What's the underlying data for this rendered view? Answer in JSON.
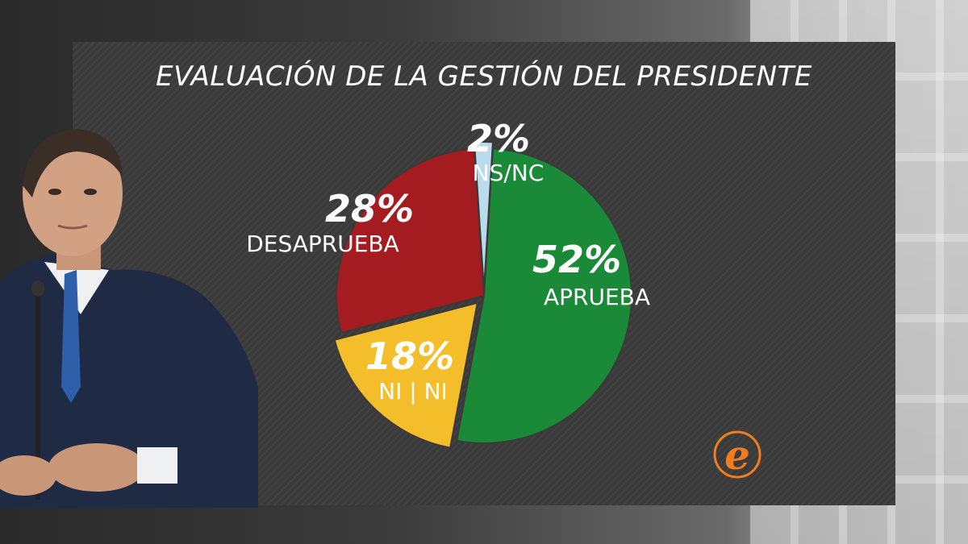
{
  "title": "EVALUACIÓN DE LA GESTIÓN DEL PRESIDENTE",
  "logo": {
    "text": "e",
    "color": "#f07d1e"
  },
  "chart_data": {
    "type": "pie",
    "title": "EVALUACIÓN DE LA GESTIÓN DEL PRESIDENTE",
    "slices": [
      {
        "label": "APRUEBA",
        "value": 52,
        "value_label": "52%",
        "color": "#1a8a38"
      },
      {
        "label": "NI | NI",
        "value": 18,
        "value_label": "18%",
        "color": "#f4bd2a"
      },
      {
        "label": "DESAPRUEBA",
        "value": 28,
        "value_label": "28%",
        "color": "#a41c1f"
      },
      {
        "label": "NS/NC",
        "value": 2,
        "value_label": "2%",
        "color": "#b9dbeb"
      }
    ]
  }
}
